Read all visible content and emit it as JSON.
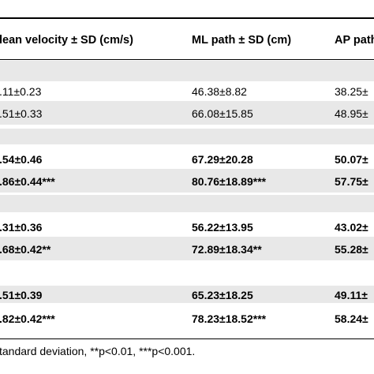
{
  "table": {
    "headers": [
      "lean velocity ± SD (cm/s)",
      "ML path ± SD (cm)",
      "AP path"
    ],
    "rows": [
      {
        "bold": false,
        "cells": [
          ".11±0.23",
          "46.38±8.82",
          "38.25±"
        ]
      },
      {
        "bold": false,
        "cells": [
          ".51±0.33",
          "66.08±15.85",
          "48.95±"
        ]
      },
      {
        "bold": true,
        "cells": [
          ".54±0.46",
          "67.29±20.28",
          "50.07±"
        ]
      },
      {
        "bold": true,
        "cells": [
          ".86±0.44***",
          "80.76±18.89***",
          "57.75±"
        ]
      },
      {
        "bold": true,
        "cells": [
          ".31±0.36",
          "56.22±13.95",
          "43.02±"
        ]
      },
      {
        "bold": true,
        "cells": [
          ".68±0.42**",
          "72.89±18.34**",
          "55.28±"
        ]
      },
      {
        "bold": true,
        "cells": [
          ".51±0.39",
          "65.23±18.25",
          "49.11±"
        ]
      },
      {
        "bold": true,
        "cells": [
          ".82±0.42***",
          "78.23±18.52***",
          "58.24±"
        ]
      }
    ],
    "footnote": "tandard deviation, **p<0.01, ***p<0.001."
  }
}
